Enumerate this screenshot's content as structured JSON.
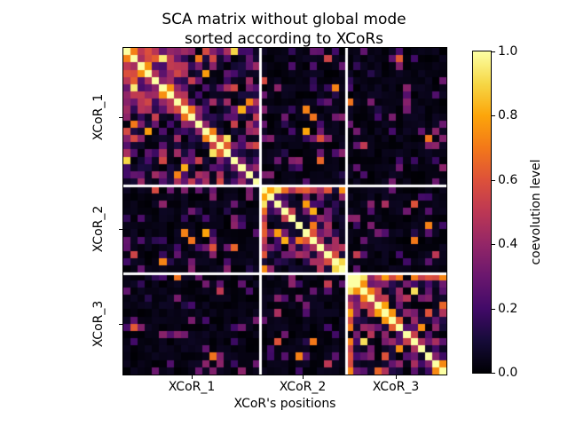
{
  "title": "SCA matrix without global mode\nsorted according to XCoRs",
  "xlabel": "XCoR's positions",
  "colorbar": {
    "label": "coevolution level",
    "ticks": [
      "1.0",
      "0.8",
      "0.6",
      "0.4",
      "0.2",
      "0.0"
    ]
  },
  "chart_data": {
    "type": "heatmap",
    "title": "SCA matrix without global mode sorted according to XCoRs",
    "xlabel": "XCoR's positions",
    "ylabel": "",
    "colorbar_label": "coevolution level",
    "value_range": [
      0.0,
      1.0
    ],
    "colorbar_ticks": [
      0.0,
      0.2,
      0.4,
      0.6,
      0.8,
      1.0
    ],
    "colormap": "inferno",
    "colormap_stops": [
      [
        0.0,
        "#000004"
      ],
      [
        0.1,
        "#160b39"
      ],
      [
        0.2,
        "#420a68"
      ],
      [
        0.3,
        "#6a176e"
      ],
      [
        0.4,
        "#932667"
      ],
      [
        0.5,
        "#bc3754"
      ],
      [
        0.6,
        "#dd513a"
      ],
      [
        0.7,
        "#f37819"
      ],
      [
        0.8,
        "#fca50a"
      ],
      [
        0.9,
        "#f6d746"
      ],
      [
        1.0,
        "#fcffa4"
      ]
    ],
    "n": 45,
    "groups": [
      {
        "label": "XCoR_1",
        "size": 19
      },
      {
        "label": "XCoR_2",
        "size": 12
      },
      {
        "label": "XCoR_3",
        "size": 14
      }
    ],
    "diagonal_value": 1.0,
    "symmetric": true,
    "separator_color": "#ffffff",
    "matrix_gen": {
      "seed": 11,
      "within": [
        {
          "hot": 9,
          "hot_min": 0.22,
          "hot_rng": 0.55,
          "base": 0.55,
          "zero_p": 0.22
        },
        {
          "hot": 2,
          "hot_min": 0.5,
          "hot_rng": 0.5,
          "base": 0.5,
          "zero_p": 0.3
        },
        {
          "hot": 5,
          "hot_min": 0.4,
          "hot_rng": 0.55,
          "base": 0.5,
          "zero_p": 0.28
        }
      ],
      "between": {
        "black_p": 0.84,
        "speckle_p": 0.135,
        "speckle_base": 0.12,
        "speckle_rng": 0.26,
        "hot_base": 0.5,
        "hot_rng": 0.35
      },
      "anti_diag_marks": [
        [
          12,
          14
        ],
        [
          19,
          21
        ],
        [
          31,
          33
        ]
      ],
      "anti_diag_value": 0.93,
      "blobs": [
        [
          31,
          2,
          1.0
        ]
      ],
      "bright_cells": [
        [
          0,
          15,
          0.9
        ],
        [
          1,
          5,
          0.95
        ],
        [
          3,
          11,
          0.78
        ],
        [
          8,
          16,
          0.82
        ],
        [
          17,
          7,
          0.72
        ],
        [
          10,
          1,
          0.7
        ],
        [
          8,
          25,
          0.72
        ],
        [
          12,
          27,
          0.6
        ],
        [
          21,
          15,
          0.3
        ],
        [
          24,
          15,
          0.38
        ],
        [
          27,
          15,
          0.65
        ],
        [
          25,
          21,
          0.78
        ],
        [
          22,
          26,
          0.82
        ],
        [
          26,
          24,
          0.7
        ],
        [
          29,
          30,
          0.9
        ],
        [
          21,
          40,
          0.6
        ],
        [
          24,
          42,
          0.72
        ],
        [
          28,
          43,
          0.5
        ],
        [
          36,
          21,
          0.45
        ],
        [
          40,
          26,
          0.7
        ],
        [
          31,
          36,
          0.78
        ],
        [
          31,
          38,
          0.7
        ],
        [
          33,
          40,
          0.92
        ],
        [
          35,
          44,
          0.65
        ],
        [
          38,
          41,
          0.75
        ],
        [
          42,
          36,
          0.6
        ]
      ]
    }
  }
}
